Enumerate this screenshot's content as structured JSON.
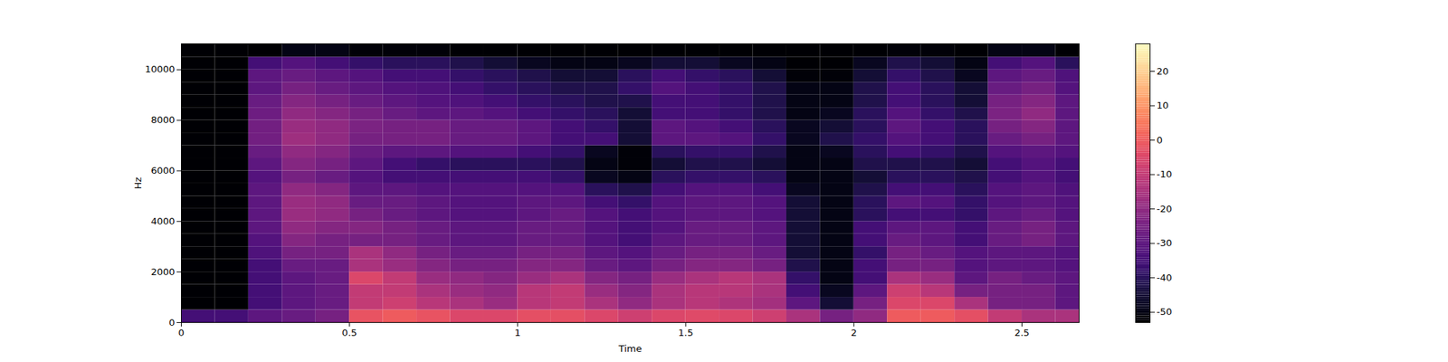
{
  "chart_data": {
    "type": "heatmap",
    "xlabel": "Time",
    "ylabel": "Hz",
    "xlim": [
      0,
      2.67
    ],
    "xticks": [
      0,
      0.5,
      1,
      1.5,
      2,
      2.5
    ],
    "ylim": [
      0,
      11025
    ],
    "yticks": [
      0,
      2000,
      4000,
      6000,
      8000,
      10000
    ],
    "x_edges": [
      0,
      0.1,
      0.2,
      0.3,
      0.4,
      0.5,
      0.6,
      0.7,
      0.8,
      0.9,
      1,
      1.1,
      1.2,
      1.3,
      1.4,
      1.5,
      1.6,
      1.7,
      1.8,
      1.9,
      2,
      2.1,
      2.2,
      2.3,
      2.4,
      2.5,
      2.6,
      2.67
    ],
    "y_edges": [
      0,
      500,
      1000,
      1500,
      2000,
      2500,
      3000,
      3500,
      4000,
      4500,
      5000,
      5500,
      6000,
      6500,
      7000,
      7500,
      8000,
      8500,
      9000,
      9500,
      10000,
      10500,
      11025
    ],
    "values": [
      [
        -35,
        -35,
        -30,
        -28,
        -25,
        -2,
        0,
        -2,
        -5,
        -5,
        -3,
        -3,
        -5,
        -8,
        -5,
        -4,
        -5,
        -8,
        -15,
        -25,
        -20,
        0,
        0,
        -3,
        -10,
        -15,
        -15
      ],
      [
        -53,
        -53,
        -35,
        -30,
        -28,
        -10,
        -8,
        -12,
        -15,
        -18,
        -12,
        -10,
        -15,
        -20,
        -15,
        -12,
        -14,
        -16,
        -30,
        -45,
        -25,
        -5,
        -5,
        -15,
        -25,
        -25,
        -30
      ],
      [
        -53,
        -53,
        -35,
        -30,
        -28,
        -10,
        -10,
        -15,
        -18,
        -20,
        -12,
        -10,
        -18,
        -22,
        -15,
        -12,
        -12,
        -15,
        -35,
        -48,
        -30,
        -8,
        -12,
        -25,
        -25,
        -25,
        -30
      ],
      [
        -53,
        -53,
        -35,
        -30,
        -28,
        -5,
        -10,
        -18,
        -20,
        -22,
        -18,
        -15,
        -22,
        -25,
        -18,
        -15,
        -12,
        -15,
        -38,
        -50,
        -35,
        -15,
        -18,
        -30,
        -25,
        -28,
        -30
      ],
      [
        -53,
        -53,
        -35,
        -28,
        -28,
        -15,
        -18,
        -22,
        -25,
        -25,
        -22,
        -22,
        -28,
        -30,
        -25,
        -22,
        -22,
        -25,
        -42,
        -50,
        -35,
        -25,
        -25,
        -32,
        -30,
        -30,
        -32
      ],
      [
        -53,
        -53,
        -33,
        -25,
        -25,
        -15,
        -20,
        -25,
        -28,
        -28,
        -25,
        -25,
        -30,
        -32,
        -28,
        -25,
        -25,
        -28,
        -45,
        -50,
        -38,
        -25,
        -28,
        -32,
        -30,
        -30,
        -32
      ],
      [
        -53,
        -53,
        -32,
        -22,
        -25,
        -25,
        -25,
        -28,
        -30,
        -30,
        -28,
        -28,
        -32,
        -35,
        -30,
        -28,
        -28,
        -30,
        -45,
        -50,
        -35,
        -28,
        -30,
        -35,
        -28,
        -25,
        -30
      ],
      [
        -53,
        -53,
        -30,
        -20,
        -22,
        -22,
        -25,
        -28,
        -30,
        -30,
        -28,
        -28,
        -32,
        -35,
        -32,
        -28,
        -28,
        -30,
        -45,
        -50,
        -35,
        -30,
        -30,
        -35,
        -28,
        -25,
        -30
      ],
      [
        -53,
        -53,
        -30,
        -18,
        -20,
        -25,
        -28,
        -30,
        -32,
        -32,
        -30,
        -28,
        -32,
        -35,
        -32,
        -30,
        -30,
        -32,
        -45,
        -50,
        -40,
        -35,
        -35,
        -38,
        -30,
        -28,
        -32
      ],
      [
        -53,
        -53,
        -30,
        -18,
        -20,
        -28,
        -28,
        -30,
        -32,
        -32,
        -30,
        -30,
        -35,
        -38,
        -32,
        -30,
        -30,
        -32,
        -45,
        -50,
        -40,
        -30,
        -32,
        -38,
        -32,
        -30,
        -32
      ],
      [
        -53,
        -53,
        -30,
        -20,
        -22,
        -30,
        -30,
        -32,
        -32,
        -32,
        -32,
        -32,
        -40,
        -42,
        -35,
        -32,
        -32,
        -35,
        -48,
        -50,
        -42,
        -35,
        -35,
        -40,
        -32,
        -30,
        -33
      ],
      [
        -53,
        -53,
        -32,
        -25,
        -28,
        -32,
        -35,
        -35,
        -35,
        -35,
        -35,
        -38,
        -48,
        -50,
        -40,
        -38,
        -38,
        -40,
        -50,
        -50,
        -45,
        -40,
        -40,
        -42,
        -35,
        -32,
        -35
      ],
      [
        -53,
        -53,
        -30,
        -22,
        -25,
        -30,
        -35,
        -38,
        -40,
        -40,
        -40,
        -42,
        -50,
        -52,
        -45,
        -42,
        -42,
        -45,
        -50,
        -50,
        -42,
        -42,
        -42,
        -45,
        -35,
        -32,
        -35
      ],
      [
        -53,
        -53,
        -28,
        -20,
        -22,
        -28,
        -30,
        -30,
        -32,
        -32,
        -35,
        -38,
        -48,
        -52,
        -40,
        -38,
        -38,
        -42,
        -50,
        -48,
        -40,
        -35,
        -38,
        -42,
        -32,
        -30,
        -32
      ],
      [
        -53,
        -53,
        -26,
        -17,
        -20,
        -25,
        -25,
        -25,
        -28,
        -28,
        -30,
        -35,
        -35,
        -45,
        -30,
        -30,
        -32,
        -38,
        -48,
        -42,
        -38,
        -32,
        -35,
        -40,
        -28,
        -25,
        -30
      ],
      [
        -53,
        -53,
        -26,
        -18,
        -20,
        -24,
        -25,
        -25,
        -28,
        -28,
        -30,
        -35,
        -38,
        -45,
        -30,
        -32,
        -35,
        -40,
        -48,
        -45,
        -40,
        -30,
        -35,
        -40,
        -25,
        -22,
        -30
      ],
      [
        -53,
        -53,
        -27,
        -20,
        -22,
        -25,
        -28,
        -30,
        -30,
        -32,
        -35,
        -38,
        -40,
        -45,
        -35,
        -35,
        -38,
        -42,
        -50,
        -48,
        -40,
        -32,
        -38,
        -42,
        -24,
        -20,
        -30
      ],
      [
        -53,
        -53,
        -28,
        -22,
        -25,
        -28,
        -30,
        -32,
        -33,
        -35,
        -38,
        -40,
        -42,
        -42,
        -35,
        -35,
        -38,
        -42,
        -50,
        -50,
        -42,
        -35,
        -40,
        -45,
        -25,
        -22,
        -30
      ],
      [
        -53,
        -53,
        -30,
        -25,
        -28,
        -30,
        -32,
        -33,
        -35,
        -38,
        -40,
        -42,
        -42,
        -38,
        -32,
        -35,
        -38,
        -42,
        -50,
        -50,
        -42,
        -35,
        -40,
        -45,
        -28,
        -25,
        -32
      ],
      [
        -53,
        -53,
        -30,
        -28,
        -30,
        -32,
        -35,
        -35,
        -38,
        -40,
        -42,
        -45,
        -45,
        -40,
        -35,
        -38,
        -40,
        -45,
        -52,
        -52,
        -45,
        -38,
        -42,
        -48,
        -30,
        -28,
        -33
      ],
      [
        -53,
        -53,
        -35,
        -32,
        -35,
        -38,
        -40,
        -40,
        -42,
        -45,
        -48,
        -50,
        -50,
        -48,
        -45,
        -45,
        -48,
        -50,
        -53,
        -53,
        -48,
        -42,
        -45,
        -50,
        -35,
        -32,
        -40
      ],
      [
        -53,
        -53,
        -53,
        -50,
        -50,
        -52,
        -52,
        -52,
        -53,
        -53,
        -53,
        -53,
        -53,
        -53,
        -53,
        -53,
        -53,
        -53,
        -53,
        -53,
        -53,
        -52,
        -52,
        -53,
        -50,
        -50,
        -53
      ]
    ],
    "colorbar": {
      "range": [
        -53,
        28
      ],
      "ticks": [
        -50,
        -40,
        -30,
        -20,
        -10,
        0,
        10,
        20
      ]
    },
    "color": "magma"
  }
}
